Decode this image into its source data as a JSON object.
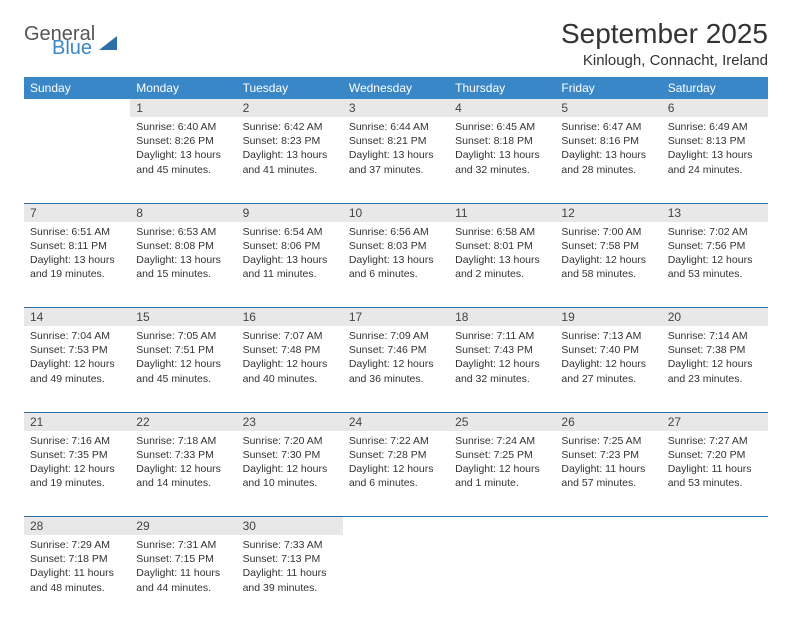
{
  "brand": {
    "part1": "General",
    "part2": "Blue"
  },
  "title": "September 2025",
  "location": "Kinlough, Connacht, Ireland",
  "colors": {
    "header_bg": "#3a87c8",
    "header_text": "#ffffff",
    "daynum_bg": "#e8e8e8",
    "row_divider": "#2f6fa8",
    "body_text": "#333333",
    "page_bg": "#ffffff"
  },
  "typography": {
    "title_fontsize": 28,
    "location_fontsize": 15,
    "header_fontsize": 12,
    "cell_fontsize": 10.5
  },
  "day_headers": [
    "Sunday",
    "Monday",
    "Tuesday",
    "Wednesday",
    "Thursday",
    "Friday",
    "Saturday"
  ],
  "weeks": [
    {
      "nums": [
        "",
        "1",
        "2",
        "3",
        "4",
        "5",
        "6"
      ],
      "cells": [
        {
          "sunrise": "",
          "sunset": "",
          "daylight": ""
        },
        {
          "sunrise": "Sunrise: 6:40 AM",
          "sunset": "Sunset: 8:26 PM",
          "daylight": "Daylight: 13 hours and 45 minutes."
        },
        {
          "sunrise": "Sunrise: 6:42 AM",
          "sunset": "Sunset: 8:23 PM",
          "daylight": "Daylight: 13 hours and 41 minutes."
        },
        {
          "sunrise": "Sunrise: 6:44 AM",
          "sunset": "Sunset: 8:21 PM",
          "daylight": "Daylight: 13 hours and 37 minutes."
        },
        {
          "sunrise": "Sunrise: 6:45 AM",
          "sunset": "Sunset: 8:18 PM",
          "daylight": "Daylight: 13 hours and 32 minutes."
        },
        {
          "sunrise": "Sunrise: 6:47 AM",
          "sunset": "Sunset: 8:16 PM",
          "daylight": "Daylight: 13 hours and 28 minutes."
        },
        {
          "sunrise": "Sunrise: 6:49 AM",
          "sunset": "Sunset: 8:13 PM",
          "daylight": "Daylight: 13 hours and 24 minutes."
        }
      ]
    },
    {
      "nums": [
        "7",
        "8",
        "9",
        "10",
        "11",
        "12",
        "13"
      ],
      "cells": [
        {
          "sunrise": "Sunrise: 6:51 AM",
          "sunset": "Sunset: 8:11 PM",
          "daylight": "Daylight: 13 hours and 19 minutes."
        },
        {
          "sunrise": "Sunrise: 6:53 AM",
          "sunset": "Sunset: 8:08 PM",
          "daylight": "Daylight: 13 hours and 15 minutes."
        },
        {
          "sunrise": "Sunrise: 6:54 AM",
          "sunset": "Sunset: 8:06 PM",
          "daylight": "Daylight: 13 hours and 11 minutes."
        },
        {
          "sunrise": "Sunrise: 6:56 AM",
          "sunset": "Sunset: 8:03 PM",
          "daylight": "Daylight: 13 hours and 6 minutes."
        },
        {
          "sunrise": "Sunrise: 6:58 AM",
          "sunset": "Sunset: 8:01 PM",
          "daylight": "Daylight: 13 hours and 2 minutes."
        },
        {
          "sunrise": "Sunrise: 7:00 AM",
          "sunset": "Sunset: 7:58 PM",
          "daylight": "Daylight: 12 hours and 58 minutes."
        },
        {
          "sunrise": "Sunrise: 7:02 AM",
          "sunset": "Sunset: 7:56 PM",
          "daylight": "Daylight: 12 hours and 53 minutes."
        }
      ]
    },
    {
      "nums": [
        "14",
        "15",
        "16",
        "17",
        "18",
        "19",
        "20"
      ],
      "cells": [
        {
          "sunrise": "Sunrise: 7:04 AM",
          "sunset": "Sunset: 7:53 PM",
          "daylight": "Daylight: 12 hours and 49 minutes."
        },
        {
          "sunrise": "Sunrise: 7:05 AM",
          "sunset": "Sunset: 7:51 PM",
          "daylight": "Daylight: 12 hours and 45 minutes."
        },
        {
          "sunrise": "Sunrise: 7:07 AM",
          "sunset": "Sunset: 7:48 PM",
          "daylight": "Daylight: 12 hours and 40 minutes."
        },
        {
          "sunrise": "Sunrise: 7:09 AM",
          "sunset": "Sunset: 7:46 PM",
          "daylight": "Daylight: 12 hours and 36 minutes."
        },
        {
          "sunrise": "Sunrise: 7:11 AM",
          "sunset": "Sunset: 7:43 PM",
          "daylight": "Daylight: 12 hours and 32 minutes."
        },
        {
          "sunrise": "Sunrise: 7:13 AM",
          "sunset": "Sunset: 7:40 PM",
          "daylight": "Daylight: 12 hours and 27 minutes."
        },
        {
          "sunrise": "Sunrise: 7:14 AM",
          "sunset": "Sunset: 7:38 PM",
          "daylight": "Daylight: 12 hours and 23 minutes."
        }
      ]
    },
    {
      "nums": [
        "21",
        "22",
        "23",
        "24",
        "25",
        "26",
        "27"
      ],
      "cells": [
        {
          "sunrise": "Sunrise: 7:16 AM",
          "sunset": "Sunset: 7:35 PM",
          "daylight": "Daylight: 12 hours and 19 minutes."
        },
        {
          "sunrise": "Sunrise: 7:18 AM",
          "sunset": "Sunset: 7:33 PM",
          "daylight": "Daylight: 12 hours and 14 minutes."
        },
        {
          "sunrise": "Sunrise: 7:20 AM",
          "sunset": "Sunset: 7:30 PM",
          "daylight": "Daylight: 12 hours and 10 minutes."
        },
        {
          "sunrise": "Sunrise: 7:22 AM",
          "sunset": "Sunset: 7:28 PM",
          "daylight": "Daylight: 12 hours and 6 minutes."
        },
        {
          "sunrise": "Sunrise: 7:24 AM",
          "sunset": "Sunset: 7:25 PM",
          "daylight": "Daylight: 12 hours and 1 minute."
        },
        {
          "sunrise": "Sunrise: 7:25 AM",
          "sunset": "Sunset: 7:23 PM",
          "daylight": "Daylight: 11 hours and 57 minutes."
        },
        {
          "sunrise": "Sunrise: 7:27 AM",
          "sunset": "Sunset: 7:20 PM",
          "daylight": "Daylight: 11 hours and 53 minutes."
        }
      ]
    },
    {
      "nums": [
        "28",
        "29",
        "30",
        "",
        "",
        "",
        ""
      ],
      "cells": [
        {
          "sunrise": "Sunrise: 7:29 AM",
          "sunset": "Sunset: 7:18 PM",
          "daylight": "Daylight: 11 hours and 48 minutes."
        },
        {
          "sunrise": "Sunrise: 7:31 AM",
          "sunset": "Sunset: 7:15 PM",
          "daylight": "Daylight: 11 hours and 44 minutes."
        },
        {
          "sunrise": "Sunrise: 7:33 AM",
          "sunset": "Sunset: 7:13 PM",
          "daylight": "Daylight: 11 hours and 39 minutes."
        },
        {
          "sunrise": "",
          "sunset": "",
          "daylight": ""
        },
        {
          "sunrise": "",
          "sunset": "",
          "daylight": ""
        },
        {
          "sunrise": "",
          "sunset": "",
          "daylight": ""
        },
        {
          "sunrise": "",
          "sunset": "",
          "daylight": ""
        }
      ]
    }
  ]
}
